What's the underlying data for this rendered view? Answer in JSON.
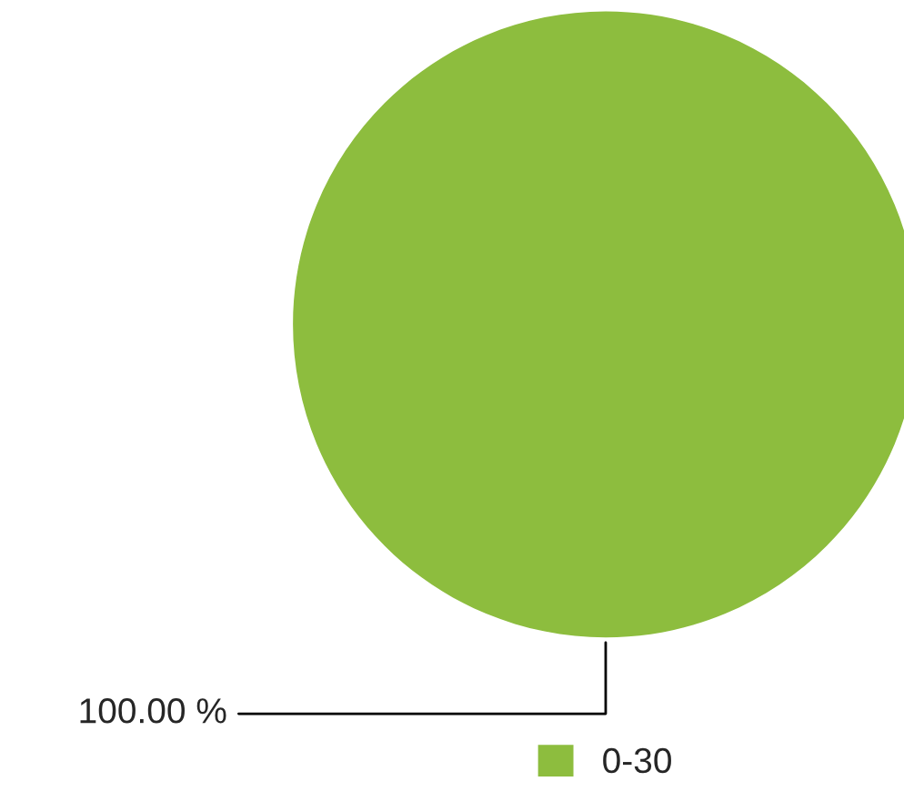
{
  "chart_data": {
    "type": "pie",
    "categories": [
      "0-30"
    ],
    "values": [
      100
    ],
    "colors": [
      "#8dbd3e"
    ],
    "value_labels": [
      "100.00 %"
    ],
    "legend": "bottom right"
  }
}
